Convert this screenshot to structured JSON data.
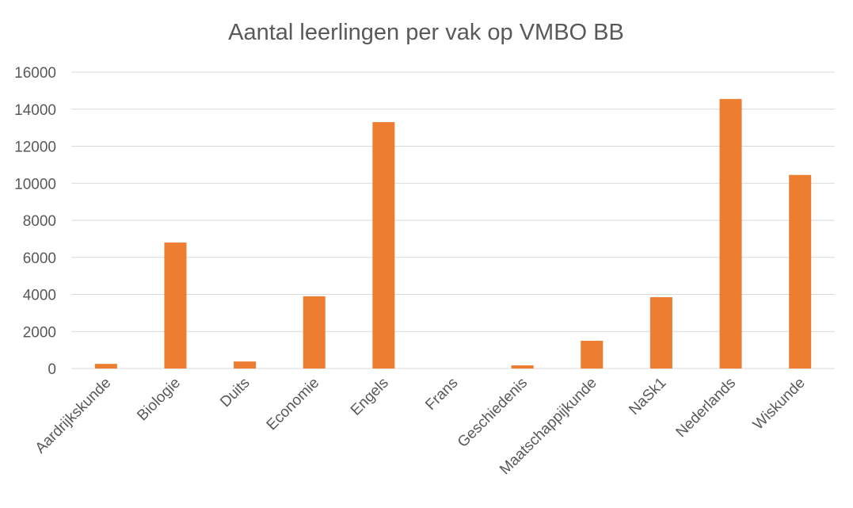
{
  "chart_data": {
    "type": "bar",
    "title": "Aantal leerlingen per vak op VMBO BB",
    "xlabel": "",
    "ylabel": "",
    "ylim": [
      0,
      16000
    ],
    "yticks": [
      0,
      2000,
      4000,
      6000,
      8000,
      10000,
      12000,
      14000,
      16000
    ],
    "grid": true,
    "legend": "none",
    "categories": [
      "Aardrijkskunde",
      "Biologie",
      "Duits",
      "Economie",
      "Engels",
      "Frans",
      "Geschiedenis",
      "Maatschappijkunde",
      "NaSk1",
      "Nederlands",
      "Wiskunde"
    ],
    "values": [
      250,
      6800,
      380,
      3900,
      13300,
      0,
      170,
      1500,
      3850,
      14550,
      10450
    ],
    "colors": {
      "bar": "#ED7D31",
      "grid": "#D9D9D9",
      "text": "#595959"
    }
  }
}
